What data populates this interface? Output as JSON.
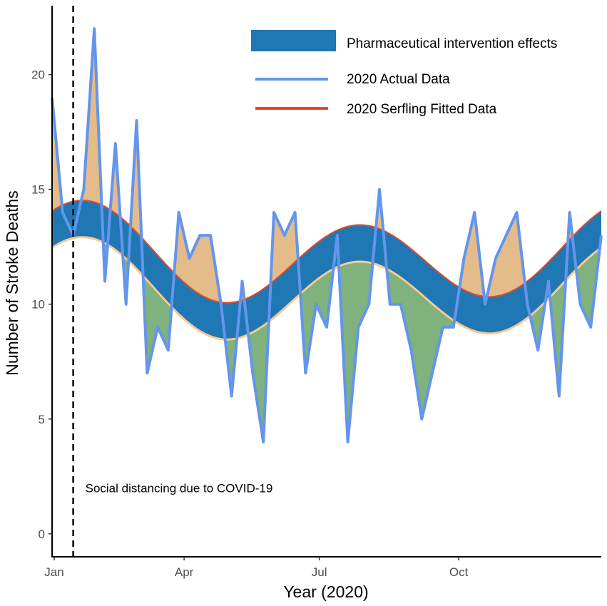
{
  "chart_data": {
    "type": "line",
    "title": "",
    "xlabel": "Year (2020)",
    "ylabel": "Number of Stroke Deaths",
    "xlim": [
      1,
      53
    ],
    "ylim": [
      -1,
      23
    ],
    "y_ticks": [
      0,
      5,
      10,
      15,
      20
    ],
    "x_ticks": [
      {
        "week": 1.2,
        "label": "Jan"
      },
      {
        "week": 13.5,
        "label": "Apr"
      },
      {
        "week": 26.3,
        "label": "Jul"
      },
      {
        "week": 39.5,
        "label": "Oct"
      }
    ],
    "colors": {
      "band": "#1f77b4",
      "actual": "#6495ed",
      "fitted": "#e04a2b",
      "lower": "#f6c894",
      "above_fill": "#e3bc8a",
      "below_fill": "#7fb27c"
    },
    "series": [
      {
        "name": "2020 Actual Data",
        "x": [
          1,
          2,
          3,
          4,
          5,
          6,
          7,
          8,
          9,
          10,
          11,
          12,
          13,
          14,
          15,
          16,
          17,
          18,
          19,
          20,
          21,
          22,
          23,
          24,
          25,
          26,
          27,
          28,
          29,
          30,
          31,
          32,
          33,
          34,
          35,
          36,
          37,
          38,
          39,
          40,
          41,
          42,
          43,
          44,
          45,
          46,
          47,
          48,
          49,
          50,
          51,
          52,
          53
        ],
        "values": [
          19,
          14,
          13,
          15,
          22,
          11,
          17,
          10,
          18,
          7,
          9,
          8,
          14,
          12,
          13,
          13,
          10,
          6,
          11,
          7,
          4,
          14,
          13,
          14,
          7,
          10,
          9,
          13,
          4,
          9,
          10,
          15,
          10,
          10,
          8,
          5,
          7,
          9,
          9,
          12,
          14,
          10,
          12,
          13,
          14,
          10,
          8,
          11,
          6,
          14,
          10,
          9,
          13
        ]
      },
      {
        "name": "2020 Serfling Fitted Data",
        "x": [
          1,
          53
        ],
        "weekly_amplitude": 2.3,
        "cycle_period_weeks": 26,
        "intercept": 12.1,
        "slope": 0.0,
        "note": "upper edge of band"
      },
      {
        "name": "Pharmaceutical intervention effects",
        "band_lower_offset": -1.6
      }
    ],
    "legend": [
      {
        "label": "Pharmaceutical intervention effects",
        "kind": "band"
      },
      {
        "label": "2020 Actual Data",
        "kind": "actual"
      },
      {
        "label": "2020 Serfling Fitted Data",
        "kind": "fitted"
      }
    ],
    "legend_position": "top-right",
    "annotation": {
      "text": "Social distancing due to COVID-19",
      "week": 3
    }
  }
}
